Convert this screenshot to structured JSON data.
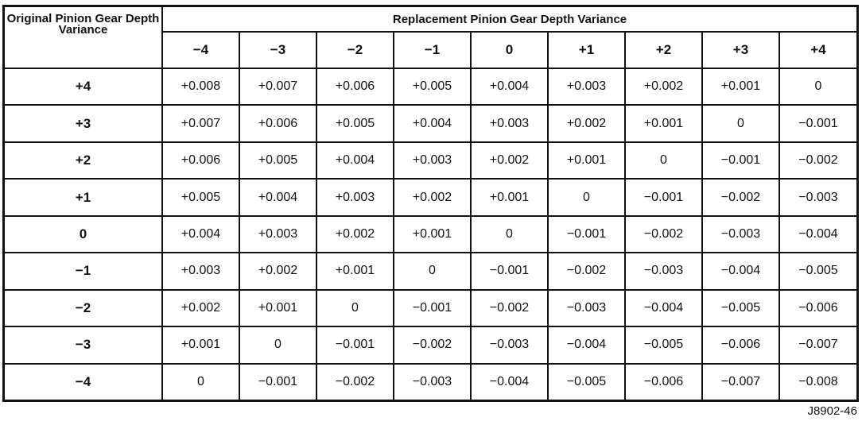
{
  "table": {
    "corner_label": "Original Pinion Gear Depth Variance",
    "group_header": "Replacement Pinion Gear Depth Variance",
    "columns": [
      "−4",
      "−3",
      "−2",
      "−1",
      "0",
      "+1",
      "+2",
      "+3",
      "+4"
    ],
    "rows": [
      {
        "label": "+4",
        "values": [
          "+0.008",
          "+0.007",
          "+0.006",
          "+0.005",
          "+0.004",
          "+0.003",
          "+0.002",
          "+0.001",
          "0"
        ]
      },
      {
        "label": "+3",
        "values": [
          "+0.007",
          "+0.006",
          "+0.005",
          "+0.004",
          "+0.003",
          "+0.002",
          "+0.001",
          "0",
          "−0.001"
        ]
      },
      {
        "label": "+2",
        "values": [
          "+0.006",
          "+0.005",
          "+0.004",
          "+0.003",
          "+0.002",
          "+0.001",
          "0",
          "−0.001",
          "−0.002"
        ]
      },
      {
        "label": "+1",
        "values": [
          "+0.005",
          "+0.004",
          "+0.003",
          "+0.002",
          "+0.001",
          "0",
          "−0.001",
          "−0.002",
          "−0.003"
        ]
      },
      {
        "label": "0",
        "values": [
          "+0.004",
          "+0.003",
          "+0.002",
          "+0.001",
          "0",
          "−0.001",
          "−0.002",
          "−0.003",
          "−0.004"
        ]
      },
      {
        "label": "−1",
        "values": [
          "+0.003",
          "+0.002",
          "+0.001",
          "0",
          "−0.001",
          "−0.002",
          "−0.003",
          "−0.004",
          "−0.005"
        ]
      },
      {
        "label": "−2",
        "values": [
          "+0.002",
          "+0.001",
          "0",
          "−0.001",
          "−0.002",
          "−0.003",
          "−0.004",
          "−0.005",
          "−0.006"
        ]
      },
      {
        "label": "−3",
        "values": [
          "+0.001",
          "0",
          "−0.001",
          "−0.002",
          "−0.003",
          "−0.004",
          "−0.005",
          "−0.006",
          "−0.007"
        ]
      },
      {
        "label": "−4",
        "values": [
          "0",
          "−0.001",
          "−0.002",
          "−0.003",
          "−0.004",
          "−0.005",
          "−0.006",
          "−0.007",
          "−0.008"
        ]
      }
    ]
  },
  "figure_id": "J8902-46"
}
